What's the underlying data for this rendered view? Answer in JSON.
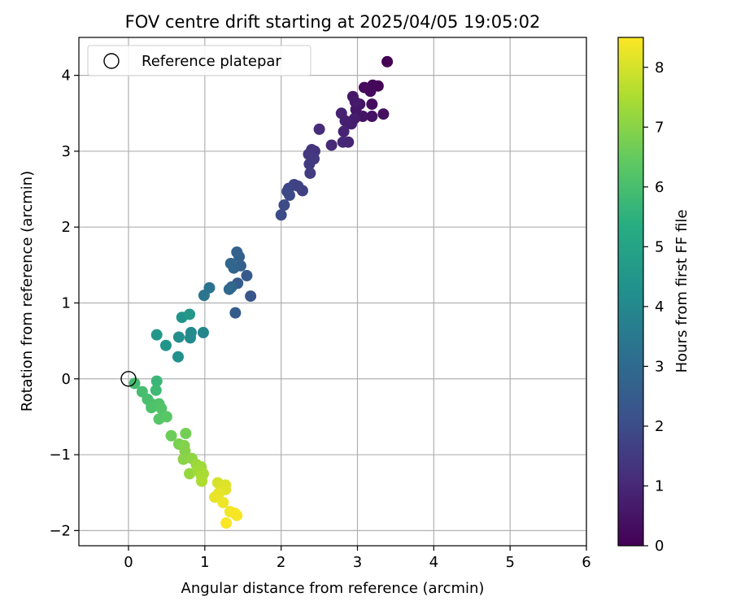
{
  "chart_data": {
    "type": "scatter",
    "title": "FOV centre drift starting at 2025/04/05 19:05:02",
    "xlabel": "Angular distance from reference (arcmin)",
    "ylabel": "Rotation from reference (arcmin)",
    "xlim": [
      -0.65,
      6.0
    ],
    "ylim": [
      -2.2,
      4.5
    ],
    "xticks": [
      0,
      1,
      2,
      3,
      4,
      5,
      6
    ],
    "yticks": [
      -2,
      -1,
      0,
      1,
      2,
      3,
      4
    ],
    "xtick_labels": [
      "0",
      "1",
      "2",
      "3",
      "4",
      "5",
      "6"
    ],
    "ytick_labels": [
      "−2",
      "−1",
      "0",
      "1",
      "2",
      "3",
      "4"
    ],
    "grid": true,
    "legend": {
      "position": "top-left",
      "entries": [
        "Reference platepar"
      ]
    },
    "reference_point": {
      "x": 0,
      "y": 0
    },
    "colorbar": {
      "label": "Hours from first FF file",
      "range": [
        0,
        8.5
      ],
      "ticks": [
        0,
        1,
        2,
        3,
        4,
        5,
        6,
        7,
        8
      ],
      "tick_labels": [
        "0",
        "1",
        "2",
        "3",
        "4",
        "5",
        "6",
        "7",
        "8"
      ],
      "colormap": "viridis"
    },
    "points": [
      {
        "x": 3.39,
        "y": 4.18,
        "c": 0.0
      },
      {
        "x": 3.27,
        "y": 3.86,
        "c": 0.1
      },
      {
        "x": 3.2,
        "y": 3.87,
        "c": 0.15
      },
      {
        "x": 3.17,
        "y": 3.79,
        "c": 0.2
      },
      {
        "x": 3.09,
        "y": 3.84,
        "c": 0.25
      },
      {
        "x": 3.19,
        "y": 3.62,
        "c": 0.3
      },
      {
        "x": 3.34,
        "y": 3.49,
        "c": 0.35
      },
      {
        "x": 3.19,
        "y": 3.46,
        "c": 0.4
      },
      {
        "x": 3.07,
        "y": 3.46,
        "c": 0.45
      },
      {
        "x": 3.03,
        "y": 3.62,
        "c": 0.5
      },
      {
        "x": 2.98,
        "y": 3.55,
        "c": 0.55
      },
      {
        "x": 2.94,
        "y": 3.72,
        "c": 0.6
      },
      {
        "x": 2.97,
        "y": 3.65,
        "c": 0.65
      },
      {
        "x": 2.96,
        "y": 3.43,
        "c": 0.7
      },
      {
        "x": 2.92,
        "y": 3.36,
        "c": 0.75
      },
      {
        "x": 2.84,
        "y": 3.4,
        "c": 0.8
      },
      {
        "x": 2.79,
        "y": 3.5,
        "c": 0.85
      },
      {
        "x": 2.82,
        "y": 3.26,
        "c": 0.9
      },
      {
        "x": 2.88,
        "y": 3.12,
        "c": 0.95
      },
      {
        "x": 2.81,
        "y": 3.12,
        "c": 1.0
      },
      {
        "x": 2.66,
        "y": 3.08,
        "c": 1.05
      },
      {
        "x": 2.5,
        "y": 3.29,
        "c": 1.1
      },
      {
        "x": 2.44,
        "y": 3.0,
        "c": 1.3
      },
      {
        "x": 2.4,
        "y": 3.02,
        "c": 1.35
      },
      {
        "x": 2.36,
        "y": 2.96,
        "c": 1.4
      },
      {
        "x": 2.43,
        "y": 2.9,
        "c": 1.45
      },
      {
        "x": 2.37,
        "y": 2.83,
        "c": 1.5
      },
      {
        "x": 2.38,
        "y": 2.71,
        "c": 1.55
      },
      {
        "x": 2.28,
        "y": 2.48,
        "c": 1.65
      },
      {
        "x": 2.22,
        "y": 2.54,
        "c": 1.7
      },
      {
        "x": 2.17,
        "y": 2.56,
        "c": 1.75
      },
      {
        "x": 2.1,
        "y": 2.51,
        "c": 1.8
      },
      {
        "x": 2.08,
        "y": 2.47,
        "c": 1.85
      },
      {
        "x": 2.11,
        "y": 2.42,
        "c": 1.9
      },
      {
        "x": 2.04,
        "y": 2.29,
        "c": 1.95
      },
      {
        "x": 2.0,
        "y": 2.16,
        "c": 2.0
      },
      {
        "x": 1.6,
        "y": 1.09,
        "c": 2.3
      },
      {
        "x": 1.55,
        "y": 1.36,
        "c": 2.45
      },
      {
        "x": 1.43,
        "y": 1.26,
        "c": 2.5
      },
      {
        "x": 1.4,
        "y": 0.87,
        "c": 2.55
      },
      {
        "x": 1.47,
        "y": 1.49,
        "c": 2.65
      },
      {
        "x": 1.45,
        "y": 1.61,
        "c": 2.7
      },
      {
        "x": 1.42,
        "y": 1.67,
        "c": 2.75
      },
      {
        "x": 1.38,
        "y": 1.46,
        "c": 2.8
      },
      {
        "x": 1.34,
        "y": 1.52,
        "c": 2.85
      },
      {
        "x": 1.35,
        "y": 1.21,
        "c": 2.9
      },
      {
        "x": 1.32,
        "y": 1.18,
        "c": 2.95
      },
      {
        "x": 1.06,
        "y": 1.2,
        "c": 3.3
      },
      {
        "x": 0.99,
        "y": 1.1,
        "c": 3.35
      },
      {
        "x": 0.98,
        "y": 0.61,
        "c": 3.9
      },
      {
        "x": 0.82,
        "y": 0.61,
        "c": 4.05
      },
      {
        "x": 0.81,
        "y": 0.54,
        "c": 4.1
      },
      {
        "x": 0.66,
        "y": 0.55,
        "c": 4.2
      },
      {
        "x": 0.65,
        "y": 0.29,
        "c": 4.3
      },
      {
        "x": 0.49,
        "y": 0.44,
        "c": 4.45
      },
      {
        "x": 0.37,
        "y": 0.58,
        "c": 4.55
      },
      {
        "x": 0.7,
        "y": 0.81,
        "c": 4.4
      },
      {
        "x": 0.8,
        "y": 0.85,
        "c": 4.5
      },
      {
        "x": 0.37,
        "y": -0.03,
        "c": 5.7
      },
      {
        "x": 0.36,
        "y": -0.15,
        "c": 5.8
      },
      {
        "x": 0.08,
        "y": -0.06,
        "c": 5.9
      },
      {
        "x": 0.18,
        "y": -0.17,
        "c": 5.95
      },
      {
        "x": 0.25,
        "y": -0.27,
        "c": 6.0
      },
      {
        "x": 0.3,
        "y": -0.33,
        "c": 6.05
      },
      {
        "x": 0.3,
        "y": -0.38,
        "c": 6.1
      },
      {
        "x": 0.4,
        "y": -0.33,
        "c": 6.15
      },
      {
        "x": 0.43,
        "y": -0.39,
        "c": 6.2
      },
      {
        "x": 0.4,
        "y": -0.53,
        "c": 6.25
      },
      {
        "x": 0.5,
        "y": -0.5,
        "c": 6.3
      },
      {
        "x": 0.56,
        "y": -0.75,
        "c": 6.6
      },
      {
        "x": 0.75,
        "y": -0.72,
        "c": 6.7
      },
      {
        "x": 0.66,
        "y": -0.86,
        "c": 6.8
      },
      {
        "x": 0.73,
        "y": -0.88,
        "c": 6.9
      },
      {
        "x": 0.74,
        "y": -0.95,
        "c": 6.95
      },
      {
        "x": 0.72,
        "y": -1.06,
        "c": 7.0
      },
      {
        "x": 0.83,
        "y": -1.05,
        "c": 7.1
      },
      {
        "x": 0.8,
        "y": -1.25,
        "c": 7.2
      },
      {
        "x": 0.89,
        "y": -1.13,
        "c": 7.25
      },
      {
        "x": 0.95,
        "y": -1.16,
        "c": 7.3
      },
      {
        "x": 0.92,
        "y": -1.22,
        "c": 7.35
      },
      {
        "x": 0.96,
        "y": -1.29,
        "c": 7.4
      },
      {
        "x": 0.98,
        "y": -1.25,
        "c": 7.45
      },
      {
        "x": 0.96,
        "y": -1.35,
        "c": 7.5
      },
      {
        "x": 1.17,
        "y": -1.37,
        "c": 8.0
      },
      {
        "x": 1.21,
        "y": -1.42,
        "c": 8.05
      },
      {
        "x": 1.27,
        "y": -1.4,
        "c": 8.1
      },
      {
        "x": 1.27,
        "y": -1.46,
        "c": 8.15
      },
      {
        "x": 1.18,
        "y": -1.51,
        "c": 8.2
      },
      {
        "x": 1.13,
        "y": -1.56,
        "c": 8.25
      },
      {
        "x": 1.24,
        "y": -1.63,
        "c": 8.3
      },
      {
        "x": 1.33,
        "y": -1.75,
        "c": 8.35
      },
      {
        "x": 1.39,
        "y": -1.77,
        "c": 8.4
      },
      {
        "x": 1.42,
        "y": -1.8,
        "c": 8.42
      },
      {
        "x": 1.28,
        "y": -1.9,
        "c": 8.45
      }
    ]
  }
}
